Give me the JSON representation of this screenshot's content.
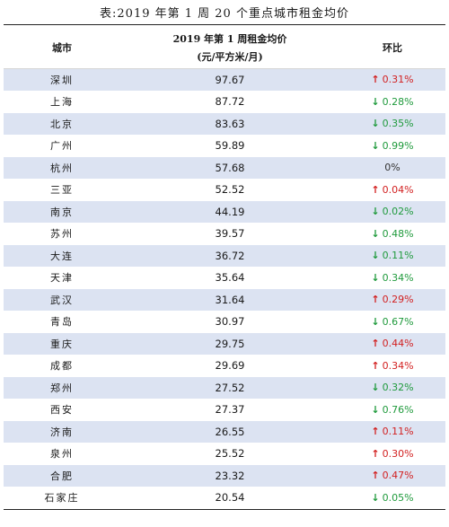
{
  "title": "表:2019 年第 1 周 20 个重点城市租金均价",
  "headers": {
    "city": "城市",
    "price_line1": "2019 年第 1 周租金均价",
    "price_line2": "(元/平方米/月)",
    "change": "环比"
  },
  "rows": [
    {
      "city": "深圳",
      "price": "97.67",
      "direction": "up",
      "arrow": "↑",
      "change": "0.31%"
    },
    {
      "city": "上海",
      "price": "87.72",
      "direction": "down",
      "arrow": "↓",
      "change": "0.28%"
    },
    {
      "city": "北京",
      "price": "83.63",
      "direction": "down",
      "arrow": "↓",
      "change": "0.35%"
    },
    {
      "city": "广州",
      "price": "59.89",
      "direction": "down",
      "arrow": "↓",
      "change": "0.99%"
    },
    {
      "city": "杭州",
      "price": "57.68",
      "direction": "flat",
      "arrow": "",
      "change": "0%"
    },
    {
      "city": "三亚",
      "price": "52.52",
      "direction": "up",
      "arrow": "↑",
      "change": "0.04%"
    },
    {
      "city": "南京",
      "price": "44.19",
      "direction": "down",
      "arrow": "↓",
      "change": "0.02%"
    },
    {
      "city": "苏州",
      "price": "39.57",
      "direction": "down",
      "arrow": "↓",
      "change": "0.48%"
    },
    {
      "city": "大连",
      "price": "36.72",
      "direction": "down",
      "arrow": "↓",
      "change": "0.11%"
    },
    {
      "city": "天津",
      "price": "35.64",
      "direction": "down",
      "arrow": "↓",
      "change": "0.34%"
    },
    {
      "city": "武汉",
      "price": "31.64",
      "direction": "up",
      "arrow": "↑",
      "change": "0.29%"
    },
    {
      "city": "青岛",
      "price": "30.97",
      "direction": "down",
      "arrow": "↓",
      "change": "0.67%"
    },
    {
      "city": "重庆",
      "price": "29.75",
      "direction": "up",
      "arrow": "↑",
      "change": "0.44%"
    },
    {
      "city": "成都",
      "price": "29.69",
      "direction": "up",
      "arrow": "↑",
      "change": "0.34%"
    },
    {
      "city": "郑州",
      "price": "27.52",
      "direction": "down",
      "arrow": "↓",
      "change": "0.32%"
    },
    {
      "city": "西安",
      "price": "27.37",
      "direction": "down",
      "arrow": "↓",
      "change": "0.76%"
    },
    {
      "city": "济南",
      "price": "26.55",
      "direction": "up",
      "arrow": "↑",
      "change": "0.11%"
    },
    {
      "city": "泉州",
      "price": "25.52",
      "direction": "up",
      "arrow": "↑",
      "change": "0.30%"
    },
    {
      "city": "合肥",
      "price": "23.32",
      "direction": "up",
      "arrow": "↑",
      "change": "0.47%"
    },
    {
      "city": "石家庄",
      "price": "20.54",
      "direction": "down",
      "arrow": "↓",
      "change": "0.05%"
    }
  ],
  "colors": {
    "up": "#d21f1f",
    "down": "#1f9a3c",
    "shade": "#dce3f2"
  }
}
